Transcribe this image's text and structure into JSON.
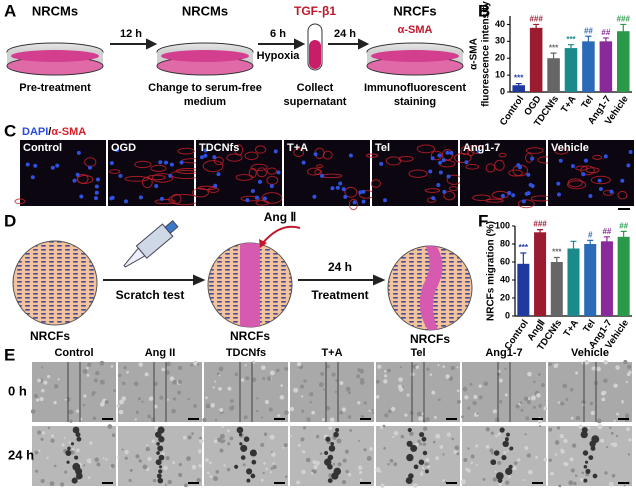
{
  "panel_labels": [
    "A",
    "B",
    "C",
    "D",
    "E",
    "F"
  ],
  "panel_a": {
    "items": [
      {
        "label": "NRCMs",
        "caption": [
          "Pre-treatment"
        ]
      },
      {
        "label": "NRCMs",
        "caption": [
          "Change to serum-free",
          "medium"
        ]
      },
      {
        "label": "TGF-β1",
        "caption": [
          "Collect",
          "supernatant"
        ]
      },
      {
        "label": "NRCFs",
        "sublabel": "α-SMA",
        "caption": [
          "Immunofluorescent",
          "staining"
        ]
      }
    ],
    "arrows": [
      {
        "top": "12 h"
      },
      {
        "top": "6 h",
        "bottom": "Hypoxia"
      },
      {
        "top": "24 h"
      }
    ]
  },
  "panel_c": {
    "legend": [
      "DAPI",
      "/",
      "α-SMA"
    ],
    "columns": [
      "Control",
      "OGD",
      "TDCNfs",
      "T+A",
      "Tel",
      "Ang1-7",
      "Vehicle"
    ]
  },
  "panel_d": {
    "nodes": [
      "NRCFs",
      "NRCFs",
      "NRCFs"
    ],
    "stimulus": "Ang Ⅱ",
    "arrows": [
      {
        "bottom": "Scratch test"
      },
      {
        "top": "24 h",
        "bottom": "Treatment"
      }
    ]
  },
  "panel_e": {
    "columns": [
      "Control",
      "Ang II",
      "TDCNfs",
      "T+A",
      "Tel",
      "Ang1-7",
      "Vehicle"
    ],
    "rows": [
      "0 h",
      "24 h"
    ]
  },
  "chart_data": [
    {
      "type": "bar",
      "y_label": [
        "α-SMA",
        "fluorescence intensity"
      ],
      "categories": [
        "Control",
        "OGD",
        "TDCNfs",
        "T+A",
        "Tel",
        "Ang1-7",
        "Vehicle"
      ],
      "values": [
        4,
        38,
        20,
        26,
        30,
        30,
        36
      ],
      "errors": [
        1,
        2,
        3,
        2,
        3,
        2,
        4
      ],
      "annotations": [
        "***",
        "###",
        "***",
        "***",
        "##",
        "##",
        "###"
      ],
      "colors": [
        "#1f3a9e",
        "#9b1b30",
        "#666666",
        "#1a8a8a",
        "#2a6ab8",
        "#8a2a9a",
        "#2a9a4a"
      ],
      "ylim": [
        0,
        45
      ],
      "yticks": [
        0,
        10,
        20,
        30,
        40
      ]
    },
    {
      "type": "bar",
      "y_label": [
        "NRCFs migration (%)"
      ],
      "categories": [
        "Control",
        "AngⅡ",
        "TDCNfs",
        "T+A",
        "Tel",
        "Ang1-7",
        "Vehicle"
      ],
      "values": [
        58,
        93,
        60,
        75,
        80,
        83,
        88
      ],
      "errors": [
        12,
        3,
        5,
        8,
        4,
        5,
        6
      ],
      "annotations": [
        "***",
        "###",
        "***",
        "",
        "#",
        "##",
        "##"
      ],
      "colors": [
        "#1f3a9e",
        "#9b1b30",
        "#666666",
        "#1a8a8a",
        "#2a6ab8",
        "#8a2a9a",
        "#2a9a4a"
      ],
      "ylim": [
        0,
        100
      ],
      "yticks": [
        0,
        20,
        40,
        60,
        80,
        100
      ]
    }
  ]
}
